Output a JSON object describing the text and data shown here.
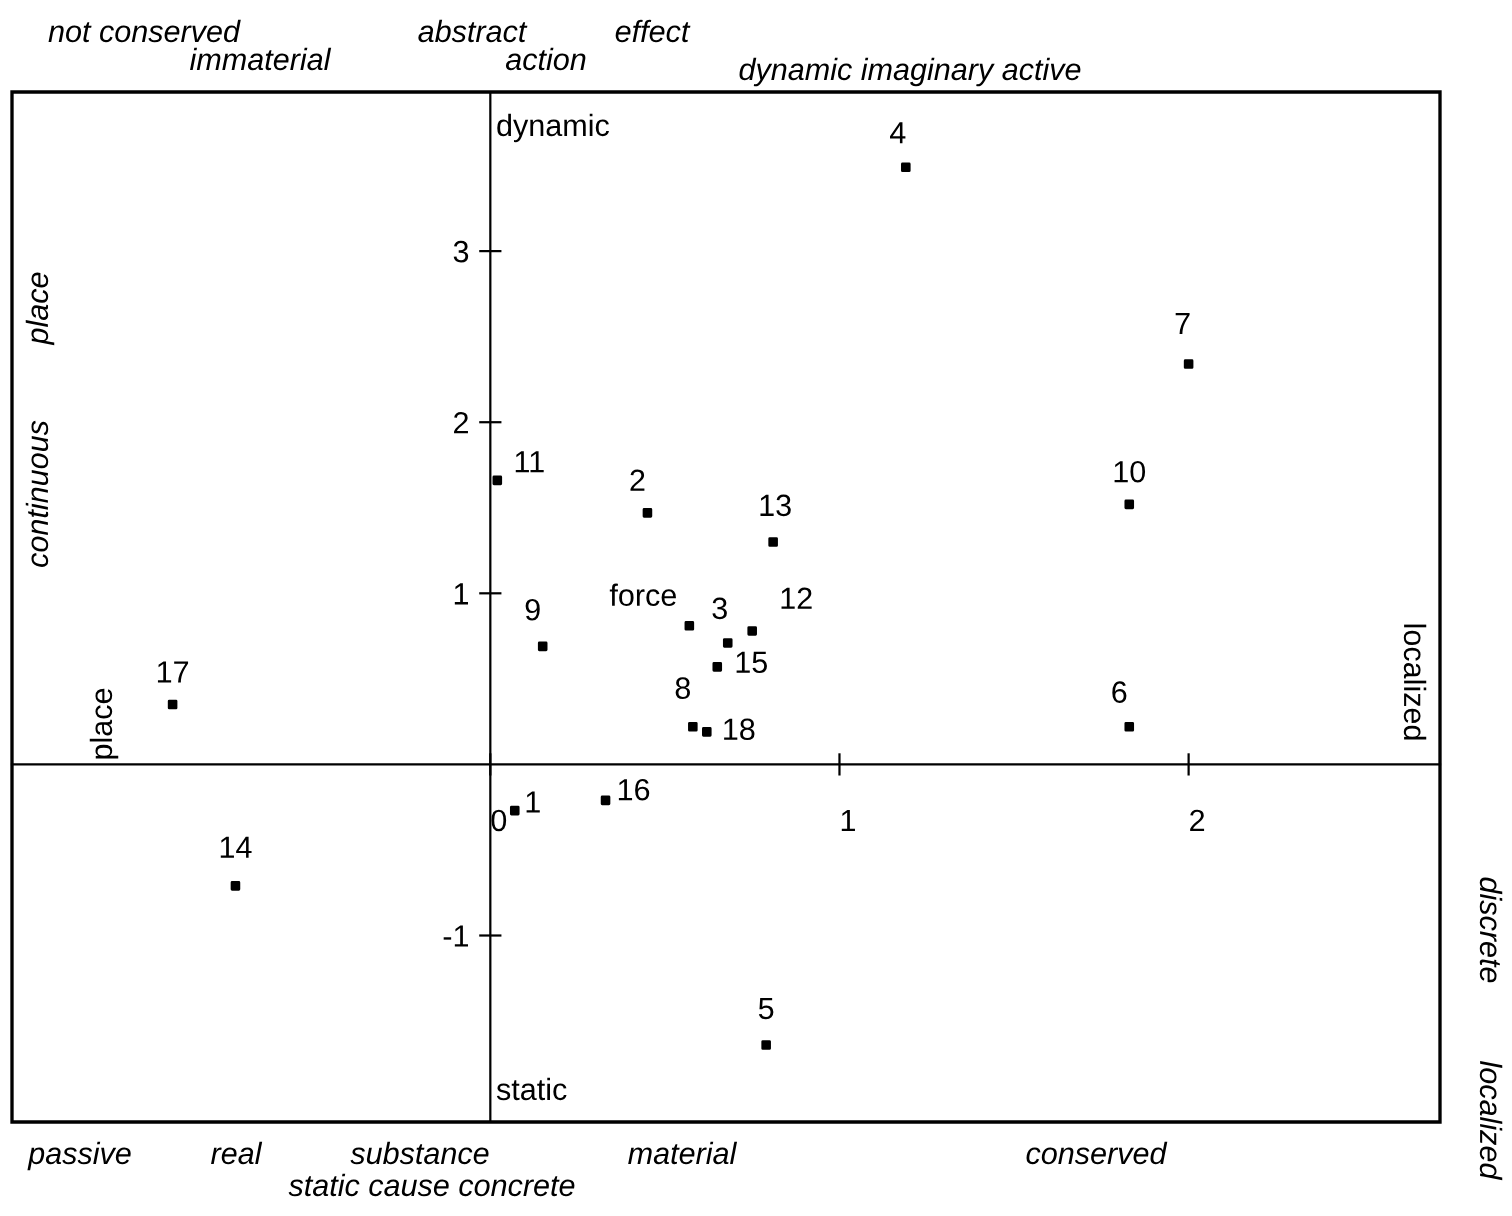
{
  "chart_data": {
    "type": "scatter",
    "color": "#000000",
    "marker": "square",
    "x": [
      1.19,
      2.0,
      1.83,
      1.83,
      0.02,
      0.45,
      0.81,
      0.57,
      0.75,
      0.68,
      0.65,
      0.15,
      0.58,
      0.62,
      0.07,
      0.33,
      -0.91,
      -0.73,
      0.79
    ],
    "values": [
      3.49,
      2.34,
      1.52,
      0.22,
      1.66,
      1.47,
      1.3,
      0.81,
      0.78,
      0.71,
      0.57,
      0.69,
      0.22,
      0.19,
      -0.27,
      -0.21,
      0.35,
      -0.71,
      -1.64
    ],
    "xlim": [
      -1.37,
      2.72
    ],
    "ylim": [
      -2.09,
      3.93
    ],
    "xticks": [
      0,
      1,
      2
    ],
    "yticks": [
      -1,
      1,
      2,
      3
    ],
    "annotations": [
      {
        "text": "4",
        "x": 1.19,
        "y": 3.49
      },
      {
        "text": "7",
        "x": 2.0,
        "y": 2.34
      },
      {
        "text": "10",
        "x": 1.83,
        "y": 1.52
      },
      {
        "text": "6",
        "x": 1.83,
        "y": 0.22
      },
      {
        "text": "11",
        "x": 0.02,
        "y": 1.66
      },
      {
        "text": "2",
        "x": 0.45,
        "y": 1.47
      },
      {
        "text": "13",
        "x": 0.81,
        "y": 1.3
      },
      {
        "text": "force",
        "x": 0.57,
        "y": 0.81
      },
      {
        "text": "12",
        "x": 0.75,
        "y": 0.78
      },
      {
        "text": "3",
        "x": 0.68,
        "y": 0.71
      },
      {
        "text": "15",
        "x": 0.65,
        "y": 0.57
      },
      {
        "text": "9",
        "x": 0.15,
        "y": 0.69
      },
      {
        "text": "8",
        "x": 0.58,
        "y": 0.22
      },
      {
        "text": "18",
        "x": 0.62,
        "y": 0.19
      },
      {
        "text": "1",
        "x": 0.07,
        "y": -0.27
      },
      {
        "text": "16",
        "x": 0.33,
        "y": -0.21
      },
      {
        "text": "17",
        "x": -0.91,
        "y": 0.35
      },
      {
        "text": "14",
        "x": -0.73,
        "y": -0.71
      },
      {
        "text": "5",
        "x": 0.79,
        "y": -1.64
      },
      "not conserved",
      "immaterial",
      "abstract",
      "action",
      "effect",
      "dynamic imaginary active",
      "passive",
      "real",
      "substance",
      "material",
      "conserved",
      "static cause concrete",
      "continuous",
      "place",
      "discrete",
      "localized",
      "dynamic",
      "static",
      "place",
      "localized"
    ]
  }
}
